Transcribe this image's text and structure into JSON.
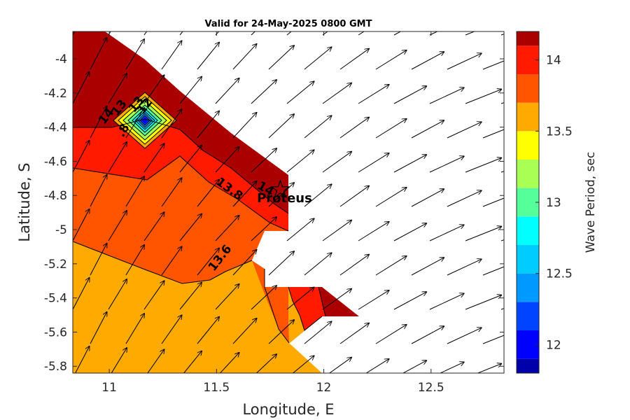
{
  "chart_data": {
    "type": "filled-contour-map",
    "title": "Valid for 24-May-2025 0800 GMT",
    "xlabel": "Longitude, E",
    "ylabel": "Latitude, S",
    "xlim": [
      10.83,
      12.84
    ],
    "ylim": [
      -5.84,
      -3.84
    ],
    "x_ticks": [
      11,
      11.5,
      12,
      12.5
    ],
    "x_tick_labels": [
      "11",
      "11.5",
      "12",
      "12.5"
    ],
    "y_ticks": [
      -4,
      -4.2,
      -4.4,
      -4.6,
      -4.8,
      -5,
      -5.2,
      -5.4,
      -5.6,
      -5.8
    ],
    "y_tick_labels": [
      "-4",
      "-4.2",
      "-4.4",
      "-4.6",
      "-4.8",
      "-5",
      "-5.2",
      "-5.4",
      "-5.6",
      "-5.8"
    ],
    "colorbar": {
      "label": "Wave Period, sec",
      "range": [
        11.8,
        14.2
      ],
      "ticks": [
        12,
        12.5,
        13,
        13.5,
        14
      ],
      "tick_labels": [
        "12",
        "12.5",
        "13",
        "13.5",
        "14"
      ],
      "levels": [
        {
          "min": 11.8,
          "max": 11.9,
          "color": "#0000AA"
        },
        {
          "min": 11.9,
          "max": 12.1,
          "color": "#0000FF"
        },
        {
          "min": 12.1,
          "max": 12.3,
          "color": "#0044FF"
        },
        {
          "min": 12.3,
          "max": 12.5,
          "color": "#0099FF"
        },
        {
          "min": 12.5,
          "max": 12.7,
          "color": "#00CCFF"
        },
        {
          "min": 12.7,
          "max": 12.9,
          "color": "#00FFFF"
        },
        {
          "min": 12.9,
          "max": 13.1,
          "color": "#55FF99"
        },
        {
          "min": 13.1,
          "max": 13.3,
          "color": "#AAFF55"
        },
        {
          "min": 13.3,
          "max": 13.5,
          "color": "#FFFF00"
        },
        {
          "min": 13.5,
          "max": 13.7,
          "color": "#FFAA00"
        },
        {
          "min": 13.7,
          "max": 13.9,
          "color": "#FF5500"
        },
        {
          "min": 13.9,
          "max": 14.1,
          "color": "#FF1A00"
        },
        {
          "min": 14.1,
          "max": 14.2,
          "color": "#AA0000"
        }
      ]
    },
    "contour_labels": [
      {
        "text": "13.8",
        "lon": 11.55,
        "lat": -4.78,
        "angle": 36
      },
      {
        "text": "13.6",
        "lon": 11.53,
        "lat": -5.18,
        "angle": -52
      },
      {
        "text": "14",
        "lon": 11.72,
        "lat": -4.78,
        "angle": 30
      },
      {
        "text": "14",
        "lon": 11.0,
        "lat": -4.35,
        "angle": -52
      },
      {
        "text": "13",
        "lon": 11.06,
        "lat": -4.3,
        "angle": -52
      },
      {
        "text": "13",
        "lon": 11.14,
        "lat": -4.28,
        "angle": -52
      },
      {
        "text": "12",
        "lon": 11.18,
        "lat": -4.29,
        "angle": -52
      },
      {
        "text": ".8",
        "lon": 11.08,
        "lat": -4.43,
        "angle": -60
      }
    ],
    "site": {
      "name": "Proteus",
      "lon": 11.83,
      "lat": -4.79
    },
    "vectors": "wave direction arrows, pointing toward the north-east",
    "grid": false
  }
}
